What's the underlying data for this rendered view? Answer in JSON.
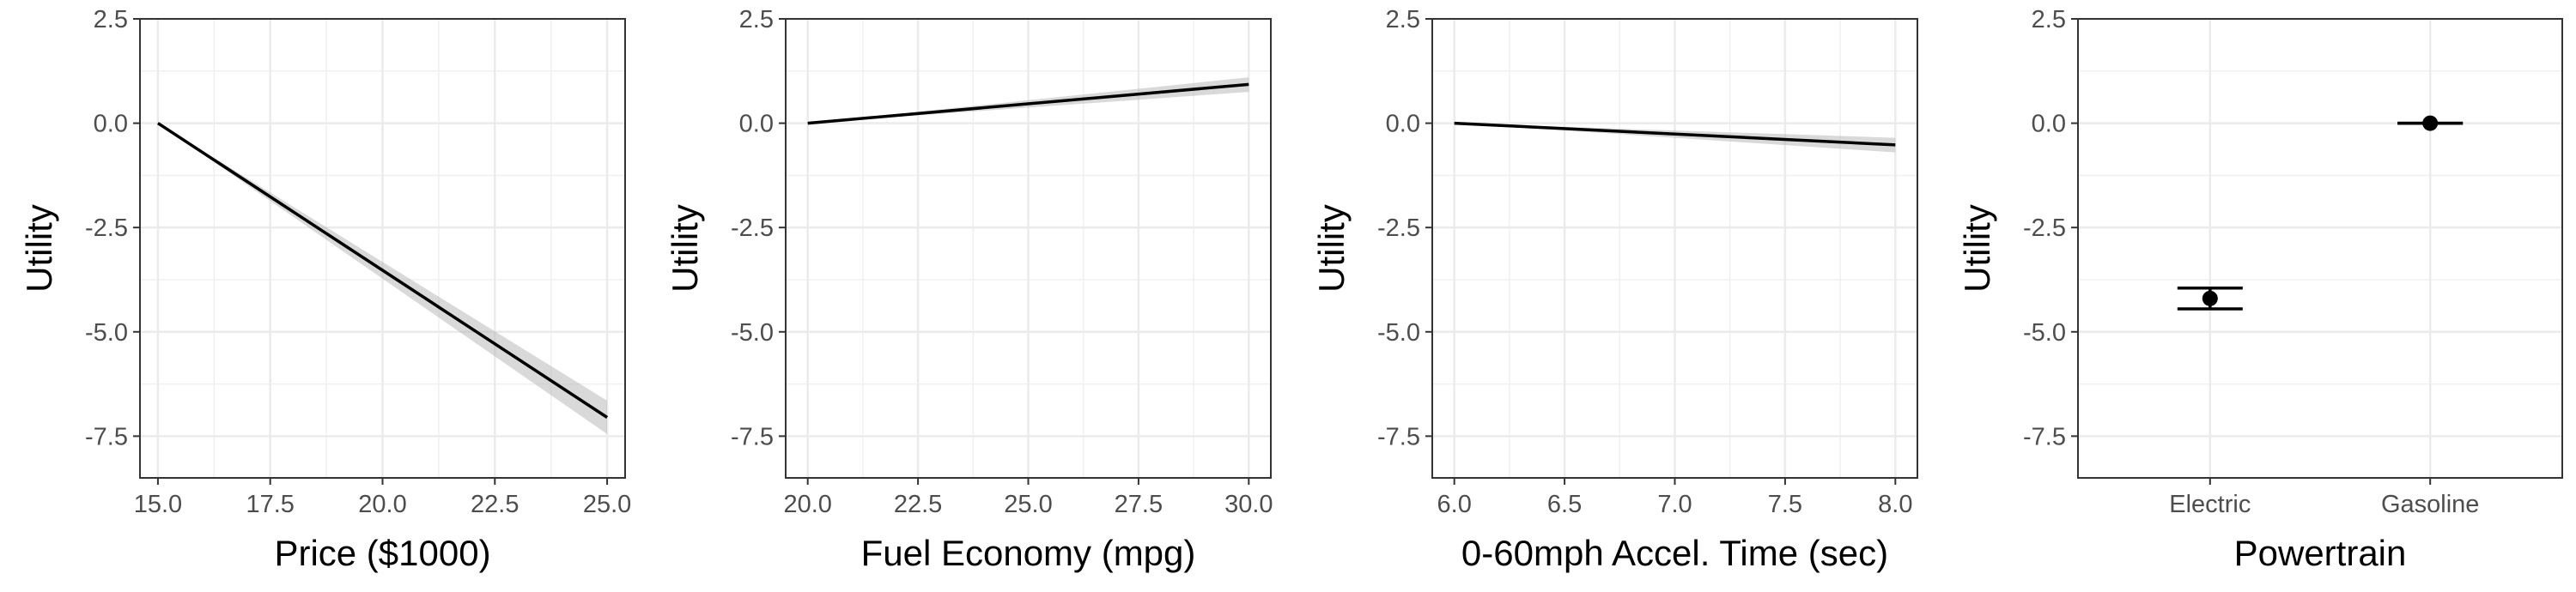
{
  "chart_data": [
    {
      "type": "line",
      "xlabel": "Price ($1000)",
      "ylabel": "Utility",
      "xlim": [
        14.6,
        25.4
      ],
      "ylim": [
        -8.5,
        2.5
      ],
      "x_ticks": [
        15.0,
        17.5,
        20.0,
        22.5,
        25.0
      ],
      "x_tick_labels": [
        "15.0",
        "17.5",
        "20.0",
        "22.5",
        "25.0"
      ],
      "y_ticks": [
        2.5,
        0.0,
        -2.5,
        -5.0,
        -7.5
      ],
      "y_tick_labels": [
        "2.5",
        "0.0",
        "-2.5",
        "-5.0",
        "-7.5"
      ],
      "grid": true,
      "series": [
        {
          "x": [
            15.0,
            25.0
          ],
          "y": [
            0.0,
            -7.05
          ],
          "lower": [
            0.0,
            -7.45
          ],
          "upper": [
            0.0,
            -6.65
          ]
        }
      ]
    },
    {
      "type": "line",
      "xlabel": "Fuel Economy (mpg)",
      "ylabel": "Utility",
      "xlim": [
        19.5,
        30.5
      ],
      "ylim": [
        -8.5,
        2.5
      ],
      "x_ticks": [
        20.0,
        22.5,
        25.0,
        27.5,
        30.0
      ],
      "x_tick_labels": [
        "20.0",
        "22.5",
        "25.0",
        "27.5",
        "30.0"
      ],
      "y_ticks": [
        2.5,
        0.0,
        -2.5,
        -5.0,
        -7.5
      ],
      "y_tick_labels": [
        "2.5",
        "0.0",
        "-2.5",
        "-5.0",
        "-7.5"
      ],
      "grid": true,
      "series": [
        {
          "x": [
            20.0,
            30.0
          ],
          "y": [
            0.0,
            0.93
          ],
          "lower": [
            0.0,
            0.75
          ],
          "upper": [
            0.0,
            1.1
          ]
        }
      ]
    },
    {
      "type": "line",
      "xlabel": "0-60mph Accel. Time (sec)",
      "ylabel": "Utility",
      "xlim": [
        5.9,
        8.1
      ],
      "ylim": [
        -8.5,
        2.5
      ],
      "x_ticks": [
        6.0,
        6.5,
        7.0,
        7.5,
        8.0
      ],
      "x_tick_labels": [
        "6.0",
        "6.5",
        "7.0",
        "7.5",
        "8.0"
      ],
      "y_ticks": [
        2.5,
        0.0,
        -2.5,
        -5.0,
        -7.5
      ],
      "y_tick_labels": [
        "2.5",
        "0.0",
        "-2.5",
        "-5.0",
        "-7.5"
      ],
      "grid": true,
      "series": [
        {
          "x": [
            6.0,
            8.0
          ],
          "y": [
            0.0,
            -0.52
          ],
          "lower": [
            0.0,
            -0.7
          ],
          "upper": [
            0.0,
            -0.35
          ]
        }
      ]
    },
    {
      "type": "scatter",
      "xlabel": "Powertrain",
      "ylabel": "Utility",
      "ylim": [
        -8.5,
        2.5
      ],
      "categories": [
        "Electric",
        "Gasoline"
      ],
      "y_ticks": [
        2.5,
        0.0,
        -2.5,
        -5.0,
        -7.5
      ],
      "y_tick_labels": [
        "2.5",
        "0.0",
        "-2.5",
        "-5.0",
        "-7.5"
      ],
      "grid": true,
      "points": [
        {
          "category": "Electric",
          "y": -4.2,
          "lower": -4.45,
          "upper": -3.95
        },
        {
          "category": "Gasoline",
          "y": 0.0,
          "lower": 0.0,
          "upper": 0.0
        }
      ]
    }
  ]
}
